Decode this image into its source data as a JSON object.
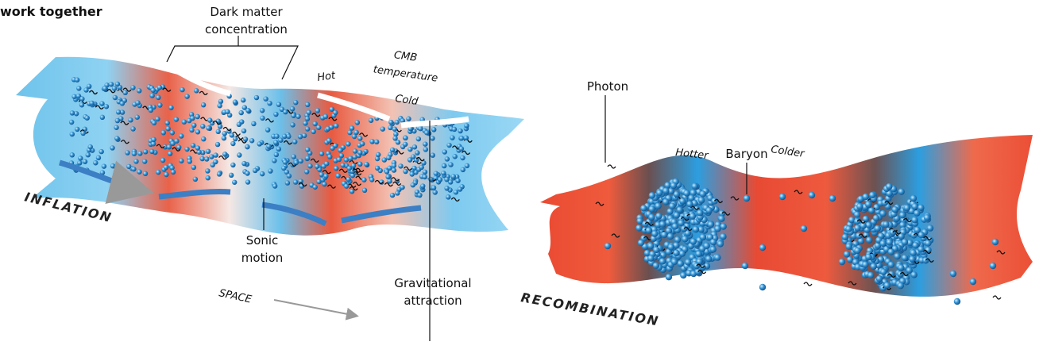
{
  "header": {
    "title": "work together"
  },
  "inflation": {
    "name": "INFLATION",
    "dark_matter": [
      "Dark matter",
      "concentration"
    ],
    "hot": "Hot",
    "cmb": [
      "CMB",
      "temperature"
    ],
    "cold": "Cold",
    "sonic": [
      "Sonic",
      "motion"
    ],
    "gravity": [
      "Gravitational",
      "attraction"
    ],
    "space": "SPACE"
  },
  "recombination": {
    "name": "RECOMBINATION",
    "photon": "Photon",
    "baryon": "Baryon",
    "hotter": "Hotter",
    "colder": "Colder"
  }
}
